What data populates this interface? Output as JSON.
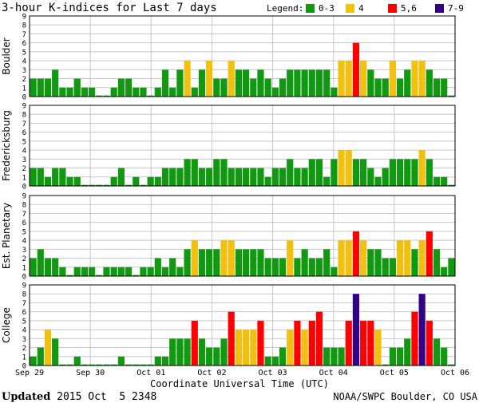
{
  "title": "3-hour K-indices for Last 7 days",
  "legend": {
    "label": "Legend:",
    "items": [
      {
        "label": "0-3",
        "color": "#119911"
      },
      {
        "label": "4",
        "color": "#f2c00e"
      },
      {
        "label": "5,6",
        "color": "#ff0000"
      },
      {
        "label": "7-9",
        "color": "#330088"
      }
    ]
  },
  "xlabel": "Coordinate Universal Time (UTC)",
  "footer": {
    "updated_label": "Updated",
    "updated_value": " 2015 Oct  5 2348",
    "source": "NOAA/SWPC Boulder, CO USA"
  },
  "chart_data": [
    {
      "type": "bar",
      "title": "Boulder",
      "ylim": [
        0,
        9
      ],
      "yticks": [
        "0",
        "1",
        "2",
        "3",
        "4",
        "5",
        "6",
        "7",
        "8",
        "9"
      ],
      "xticks": [
        "Sep 29",
        "Sep 30",
        "Oct 01",
        "Oct 02",
        "Oct 03",
        "Oct 04",
        "Oct 05",
        "Oct 06"
      ],
      "values": [
        2,
        2,
        2,
        3,
        1,
        1,
        2,
        1,
        1,
        0,
        0,
        1,
        2,
        2,
        1,
        1,
        0,
        1,
        3,
        1,
        3,
        4,
        1,
        3,
        4,
        2,
        2,
        4,
        3,
        3,
        2,
        3,
        2,
        1,
        2,
        3,
        3,
        3,
        3,
        3,
        3,
        1,
        4,
        4,
        6,
        4,
        3,
        2,
        2,
        4,
        2,
        3,
        4,
        4,
        3,
        2,
        2,
        0
      ]
    },
    {
      "type": "bar",
      "title": "Fredericksburg",
      "ylim": [
        0,
        9
      ],
      "yticks": [
        "0",
        "1",
        "2",
        "3",
        "4",
        "5",
        "6",
        "7",
        "8",
        "9"
      ],
      "xticks": [
        "Sep 29",
        "Sep 30",
        "Oct 01",
        "Oct 02",
        "Oct 03",
        "Oct 04",
        "Oct 05",
        "Oct 06"
      ],
      "values": [
        2,
        2,
        1,
        2,
        2,
        1,
        1,
        0,
        0,
        0,
        0,
        1,
        2,
        0,
        1,
        0,
        1,
        1,
        2,
        2,
        2,
        3,
        3,
        2,
        2,
        3,
        3,
        2,
        2,
        2,
        2,
        2,
        1,
        2,
        2,
        3,
        2,
        2,
        3,
        3,
        1,
        3,
        4,
        4,
        3,
        3,
        2,
        1,
        2,
        3,
        3,
        3,
        3,
        4,
        3,
        1,
        1,
        0
      ]
    },
    {
      "type": "bar",
      "title": "Est. Planetary",
      "ylim": [
        0,
        9
      ],
      "yticks": [
        "0",
        "1",
        "2",
        "3",
        "4",
        "5",
        "6",
        "7",
        "8",
        "9"
      ],
      "xticks": [
        "Sep 29",
        "Sep 30",
        "Oct 01",
        "Oct 02",
        "Oct 03",
        "Oct 04",
        "Oct 05",
        "Oct 06"
      ],
      "values": [
        2,
        3,
        2,
        2,
        1,
        0,
        1,
        1,
        1,
        0,
        1,
        1,
        1,
        1,
        0,
        1,
        1,
        2,
        1,
        2,
        1,
        3,
        4,
        3,
        3,
        3,
        4,
        4,
        3,
        3,
        3,
        3,
        2,
        2,
        2,
        4,
        2,
        3,
        2,
        2,
        3,
        1,
        4,
        4,
        5,
        4,
        3,
        3,
        2,
        2,
        4,
        4,
        3,
        4,
        5,
        3,
        1,
        2
      ]
    },
    {
      "type": "bar",
      "title": "College",
      "ylim": [
        0,
        9
      ],
      "yticks": [
        "0",
        "1",
        "2",
        "3",
        "4",
        "5",
        "6",
        "7",
        "8",
        "9"
      ],
      "xticks": [
        "Sep 29",
        "Sep 30",
        "Oct 01",
        "Oct 02",
        "Oct 03",
        "Oct 04",
        "Oct 05",
        "Oct 06"
      ],
      "values": [
        1,
        2,
        4,
        3,
        0,
        0,
        1,
        0,
        0,
        0,
        0,
        0,
        1,
        0,
        0,
        0,
        0,
        1,
        1,
        3,
        3,
        3,
        5,
        3,
        2,
        2,
        3,
        6,
        4,
        4,
        4,
        5,
        1,
        1,
        2,
        4,
        5,
        4,
        5,
        6,
        2,
        2,
        2,
        5,
        8,
        5,
        5,
        4,
        0,
        2,
        2,
        3,
        6,
        8,
        5,
        3,
        2,
        0
      ]
    }
  ]
}
